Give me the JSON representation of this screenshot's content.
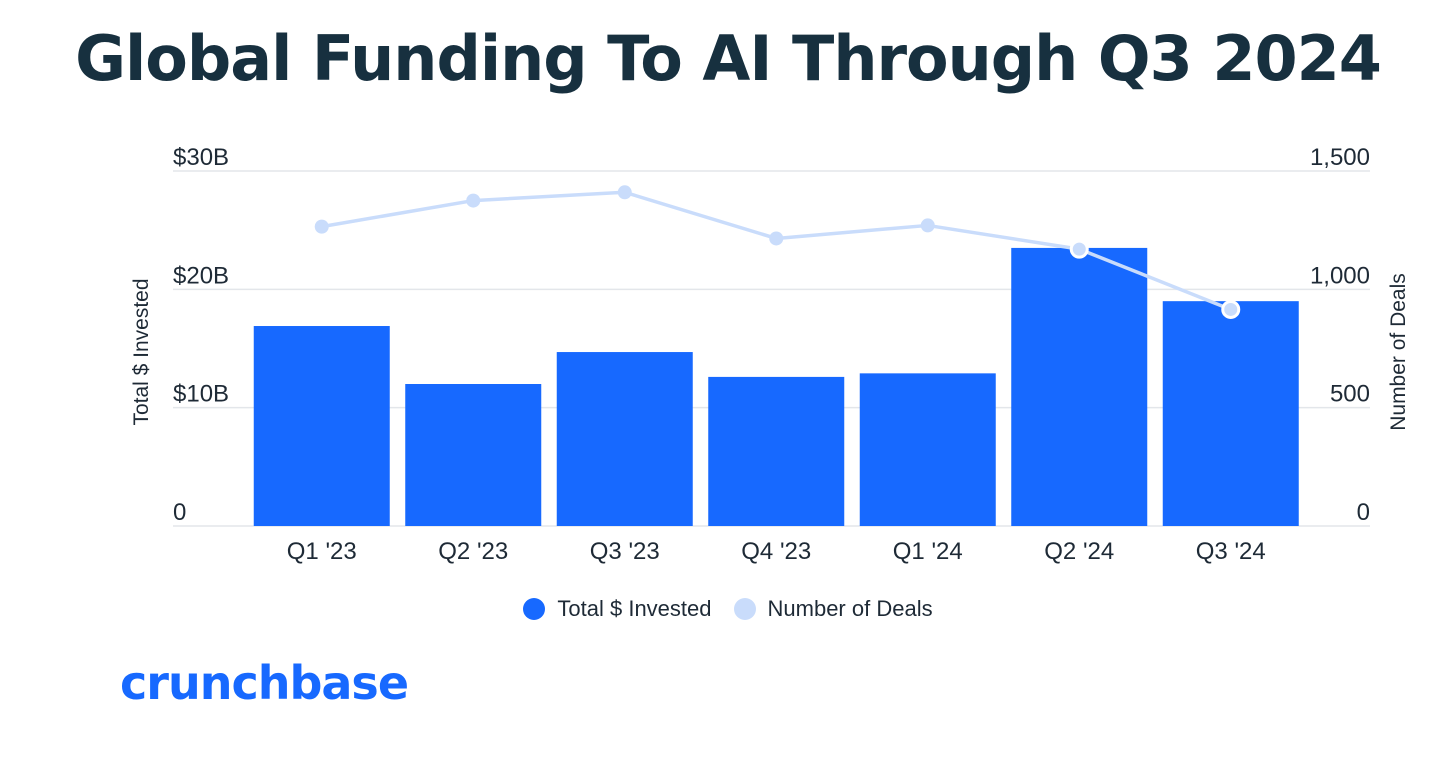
{
  "page": {
    "title": "Global Funding To AI Through Q3 2024",
    "brand": "crunchbase"
  },
  "colors": {
    "bar": "#1769ff",
    "line": "#c9dcfb",
    "grid": "#e3e6ea",
    "title": "#17303f",
    "brand": "#1769ff"
  },
  "chart_data": {
    "type": "bar",
    "categories": [
      "Q1 '23",
      "Q2 '23",
      "Q3 '23",
      "Q4 '23",
      "Q1 '24",
      "Q2 '24",
      "Q3 '24"
    ],
    "series": [
      {
        "name": "Total $ Invested",
        "axis": "left",
        "type": "bar",
        "values": [
          16.9,
          12.0,
          14.7,
          12.6,
          12.9,
          23.5,
          19.0
        ]
      },
      {
        "name": "Number of Deals",
        "axis": "right",
        "type": "line",
        "values": [
          1265,
          1375,
          1410,
          1215,
          1270,
          1170,
          915
        ]
      }
    ],
    "ylabel": "Total $ Invested",
    "y2label": "Number of Deals",
    "ylim": [
      0,
      30
    ],
    "y2lim": [
      0,
      1500
    ],
    "yticks": [
      "0",
      "$10B",
      "$20B",
      "$30B"
    ],
    "y2ticks": [
      "0",
      "500",
      "1,000",
      "1,500"
    ],
    "grid": true,
    "legend": "bottom-center"
  }
}
